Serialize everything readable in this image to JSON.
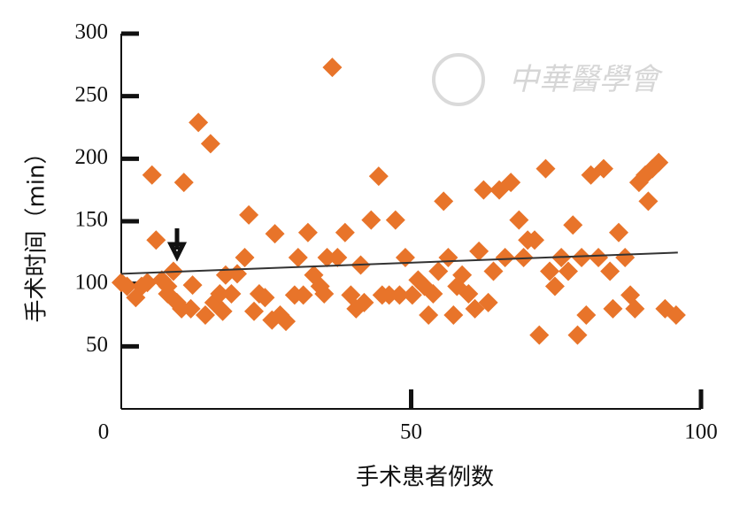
{
  "watermark": "中華醫學會",
  "chart_data": {
    "type": "scatter",
    "x_label": "手术患者例数",
    "y_label": "手术时间（min）",
    "xlim": [
      0,
      100
    ],
    "xticks": [
      0,
      50,
      100
    ],
    "ylim": [
      0,
      300
    ],
    "yticks": [
      50,
      100,
      150,
      200,
      250,
      300
    ],
    "series": [
      {
        "color": "#e8742a",
        "x": [
          0,
          1,
          2.5,
          3.5,
          4.5,
          5.3,
          6,
          7,
          8,
          9,
          8,
          9.6,
          10.8,
          10.4,
          12.3,
          12,
          13.3,
          14.5,
          15.4,
          16,
          17,
          17.5,
          18,
          19,
          20,
          21.3,
          22,
          22.9,
          23.8,
          24.8,
          26,
          26.5,
          27.4,
          28.4,
          29.9,
          30.5,
          31.4,
          32.2,
          33.2,
          34.3,
          35,
          35.5,
          36.4,
          37.3,
          38.6,
          39.6,
          40.5,
          41.3,
          41.9,
          43.1,
          44.4,
          45,
          46.2,
          47.3,
          48,
          49,
          50.2,
          51.2,
          52.3,
          53,
          53.8,
          54.7,
          55.6,
          56.4,
          57.3,
          57.9,
          58.8,
          59.9,
          61,
          61.7,
          62.5,
          63.3,
          64.2,
          65.2,
          66.2,
          67.2,
          68.6,
          69.4,
          70.1,
          71.3,
          72.1,
          73.2,
          73.9,
          74.8,
          75.9,
          77.1,
          77.9,
          78.7,
          79.4,
          80.2,
          81,
          82.3,
          83.2,
          84.3,
          84.8,
          85.8,
          86.9,
          87.8,
          88.6,
          89.3,
          90.4,
          90.9,
          91.6,
          92.7,
          93.8,
          95.7
        ],
        "values": [
          101,
          98,
          89,
          98,
          101,
          187,
          135,
          103,
          98,
          110,
          92,
          85,
          181,
          80,
          99,
          80,
          229,
          75,
          212,
          85,
          92,
          78,
          107,
          92,
          108,
          121,
          155,
          78,
          92,
          89,
          71,
          140,
          75,
          70,
          91,
          121,
          91,
          141,
          107,
          98,
          92,
          121,
          273,
          121,
          141,
          91,
          80,
          115,
          85,
          151,
          186,
          91,
          91,
          151,
          91,
          121,
          91,
          103,
          98,
          75,
          92,
          110,
          166,
          121,
          75,
          98,
          107,
          92,
          80,
          126,
          175,
          85,
          110,
          175,
          121,
          181,
          151,
          121,
          135,
          135,
          59,
          192,
          110,
          98,
          121,
          110,
          147,
          59,
          121,
          75,
          187,
          121,
          192,
          110,
          80,
          141,
          121,
          91,
          80,
          181,
          187,
          166,
          192,
          197,
          80,
          75
        ]
      }
    ],
    "trend": {
      "color": "#333333",
      "x": [
        0,
        96
      ],
      "values": [
        108,
        125
      ]
    }
  }
}
